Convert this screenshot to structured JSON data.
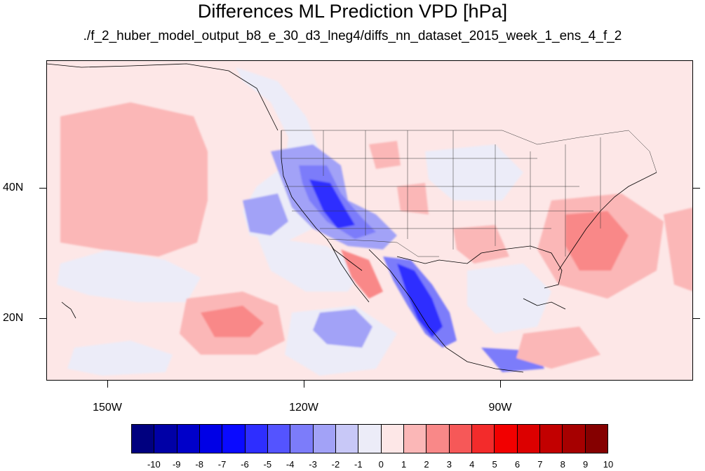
{
  "title": "Differences ML Prediction VPD [hPa]",
  "subtitle": "./f_2_huber_model_output_b8_e_30_d3_lneg4/diffs_nn_dataset_2015_week_1_ens_4_f_2",
  "map": {
    "lon_range": [
      -160,
      -62
    ],
    "lat_range": [
      11,
      60
    ],
    "lat_labels": [
      "40N",
      "20N"
    ],
    "lon_labels": [
      "150W",
      "120W",
      "90W"
    ],
    "background_color": "#fde7e7"
  },
  "colorbar": {
    "labels": [
      "-10",
      "-9",
      "-8",
      "-7",
      "-6",
      "-5",
      "-4",
      "-3",
      "-2",
      "-1",
      "0",
      "1",
      "2",
      "3",
      "4",
      "5",
      "6",
      "7",
      "8",
      "9",
      "10"
    ],
    "colors": [
      "#00007f",
      "#0000a6",
      "#0000c9",
      "#0000e6",
      "#0a0aff",
      "#2e2eff",
      "#5454ff",
      "#7c7cfa",
      "#a2a2f7",
      "#c8c8f7",
      "#ececf8",
      "#fde7e7",
      "#fbb7b7",
      "#f98888",
      "#f65858",
      "#f32b2b",
      "#f20000",
      "#dc0000",
      "#c20000",
      "#a60000",
      "#850000"
    ]
  }
}
